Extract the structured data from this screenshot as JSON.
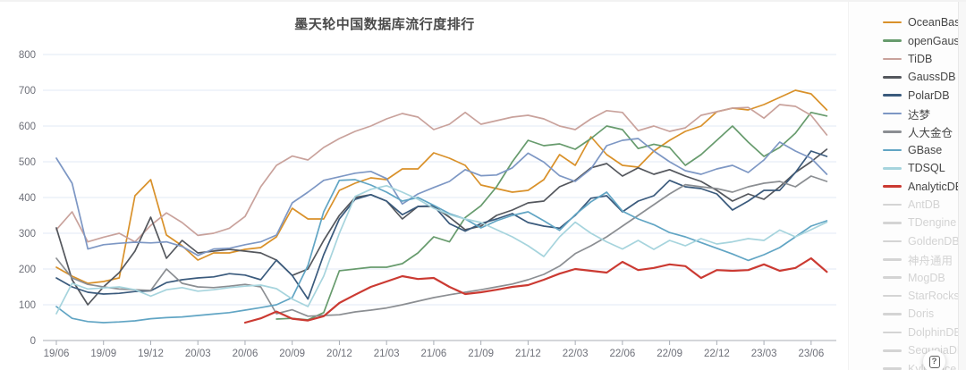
{
  "chart": {
    "title": "墨天轮中国数据库流行度排行"
  },
  "help_button": {
    "label": "?"
  },
  "chart_data": {
    "type": "line",
    "title": "墨天轮中国数据库流行度排行",
    "xlabel": "",
    "ylabel": "",
    "ylim": [
      0,
      800
    ],
    "y_ticks": [
      0,
      100,
      200,
      300,
      400,
      500,
      600,
      700,
      800
    ],
    "grid": true,
    "legend_position": "right",
    "x_tick_labels": [
      "19/06",
      "19/09",
      "19/12",
      "20/03",
      "20/06",
      "20/09",
      "20/12",
      "21/03",
      "21/06",
      "21/09",
      "21/12",
      "22/03",
      "22/06",
      "22/09",
      "22/12",
      "23/03",
      "23/06"
    ],
    "months": [
      "19/06",
      "19/07",
      "19/08",
      "19/09",
      "19/10",
      "19/11",
      "19/12",
      "20/01",
      "20/02",
      "20/03",
      "20/04",
      "20/05",
      "20/06",
      "20/07",
      "20/08",
      "20/09",
      "20/10",
      "20/11",
      "20/12",
      "21/01",
      "21/02",
      "21/03",
      "21/04",
      "21/05",
      "21/06",
      "21/07",
      "21/08",
      "21/09",
      "21/10",
      "21/11",
      "21/12",
      "22/01",
      "22/02",
      "22/03",
      "22/04",
      "22/05",
      "22/06",
      "22/07",
      "22/08",
      "22/09",
      "22/10",
      "22/11",
      "22/12",
      "23/01",
      "23/02",
      "23/03",
      "23/04",
      "23/05",
      "23/06",
      "23/07"
    ],
    "series": [
      {
        "name": "OceanBase",
        "color": "#d9912a",
        "enabled": true,
        "width": 1.7,
        "values": [
          205,
          180,
          160,
          165,
          175,
          405,
          450,
          295,
          265,
          225,
          245,
          245,
          255,
          260,
          290,
          370,
          340,
          340,
          420,
          440,
          455,
          450,
          480,
          480,
          525,
          510,
          490,
          435,
          425,
          415,
          420,
          450,
          520,
          490,
          570,
          520,
          490,
          485,
          530,
          560,
          585,
          600,
          640,
          650,
          645,
          660,
          680,
          700,
          690,
          645
        ]
      },
      {
        "name": "openGauss",
        "color": "#679b6d",
        "enabled": true,
        "width": 1.7,
        "values": [
          null,
          null,
          null,
          null,
          null,
          null,
          null,
          null,
          null,
          null,
          null,
          null,
          null,
          null,
          60,
          62,
          58,
          78,
          195,
          200,
          205,
          205,
          215,
          245,
          290,
          276,
          344,
          377,
          430,
          500,
          560,
          545,
          550,
          535,
          565,
          600,
          590,
          537,
          549,
          540,
          490,
          520,
          560,
          600,
          555,
          515,
          540,
          580,
          638,
          628
        ]
      },
      {
        "name": "TiDB",
        "color": "#c9a29c",
        "enabled": true,
        "width": 1.7,
        "values": [
          310,
          360,
          276,
          289,
          300,
          276,
          322,
          357,
          330,
          294,
          300,
          314,
          347,
          430,
          490,
          516,
          505,
          540,
          565,
          585,
          600,
          620,
          635,
          625,
          590,
          605,
          638,
          605,
          615,
          625,
          630,
          620,
          600,
          590,
          620,
          643,
          638,
          587,
          600,
          585,
          595,
          630,
          640,
          650,
          652,
          622,
          660,
          655,
          630,
          575
        ]
      },
      {
        "name": "GaussDB",
        "color": "#54575d",
        "enabled": true,
        "width": 1.7,
        "values": [
          315,
          170,
          100,
          150,
          190,
          250,
          345,
          230,
          280,
          245,
          250,
          255,
          250,
          245,
          225,
          182,
          200,
          280,
          350,
          400,
          408,
          390,
          340,
          375,
          375,
          345,
          310,
          320,
          350,
          365,
          385,
          390,
          430,
          448,
          483,
          495,
          460,
          483,
          465,
          478,
          460,
          445,
          420,
          390,
          410,
          395,
          430,
          470,
          500,
          535
        ]
      },
      {
        "name": "PolarDB",
        "color": "#3a5a7c",
        "enabled": true,
        "width": 1.7,
        "values": [
          175,
          150,
          135,
          130,
          132,
          137,
          139,
          162,
          170,
          175,
          178,
          187,
          183,
          170,
          225,
          182,
          116,
          240,
          340,
          395,
          408,
          390,
          352,
          375,
          377,
          327,
          306,
          327,
          340,
          355,
          330,
          320,
          314,
          350,
          398,
          405,
          360,
          390,
          405,
          448,
          430,
          425,
          410,
          365,
          390,
          420,
          420,
          470,
          530,
          515
        ]
      },
      {
        "name": "达梦",
        "color": "#7d97c4",
        "enabled": true,
        "width": 1.7,
        "values": [
          510,
          440,
          256,
          268,
          272,
          275,
          273,
          276,
          263,
          238,
          256,
          258,
          268,
          276,
          295,
          385,
          415,
          448,
          458,
          468,
          473,
          453,
          382,
          410,
          428,
          445,
          478,
          461,
          463,
          483,
          524,
          499,
          461,
          445,
          480,
          545,
          560,
          565,
          530,
          500,
          475,
          465,
          480,
          490,
          470,
          505,
          555,
          530,
          510,
          465
        ]
      },
      {
        "name": "人大金仓",
        "color": "#8b8e92",
        "enabled": true,
        "width": 1.7,
        "values": [
          230,
          175,
          157,
          150,
          144,
          142,
          140,
          200,
          160,
          150,
          148,
          152,
          157,
          150,
          75,
          86,
          68,
          70,
          72,
          80,
          85,
          91,
          100,
          110,
          120,
          128,
          135,
          142,
          150,
          158,
          170,
          185,
          208,
          243,
          265,
          290,
          320,
          350,
          380,
          410,
          436,
          430,
          425,
          415,
          430,
          440,
          445,
          430,
          460,
          445
        ]
      },
      {
        "name": "GBase",
        "color": "#61a5c4",
        "enabled": true,
        "width": 1.7,
        "values": [
          95,
          62,
          53,
          50,
          52,
          55,
          61,
          64,
          66,
          70,
          74,
          78,
          85,
          92,
          100,
          120,
          210,
          360,
          448,
          450,
          435,
          415,
          390,
          400,
          378,
          355,
          340,
          315,
          335,
          350,
          360,
          335,
          308,
          352,
          388,
          415,
          362,
          340,
          324,
          302,
          290,
          274,
          258,
          242,
          224,
          240,
          260,
          290,
          320,
          335
        ]
      },
      {
        "name": "TDSQL",
        "color": "#a6d4dd",
        "enabled": true,
        "width": 1.7,
        "values": [
          75,
          160,
          144,
          147,
          150,
          142,
          124,
          142,
          148,
          138,
          142,
          148,
          152,
          155,
          145,
          116,
          95,
          180,
          300,
          403,
          423,
          433,
          415,
          395,
          370,
          352,
          340,
          330,
          310,
          290,
          265,
          235,
          290,
          331,
          300,
          276,
          256,
          280,
          255,
          280,
          265,
          285,
          270,
          276,
          285,
          280,
          309,
          290,
          310,
          331
        ]
      },
      {
        "name": "AnalyticDB",
        "color": "#cb3a32",
        "enabled": true,
        "width": 2.2,
        "values": [
          null,
          null,
          null,
          null,
          null,
          null,
          null,
          null,
          null,
          null,
          null,
          null,
          50,
          62,
          81,
          61,
          56,
          68,
          105,
          128,
          150,
          165,
          180,
          172,
          175,
          150,
          130,
          135,
          142,
          150,
          155,
          170,
          187,
          200,
          195,
          190,
          220,
          197,
          203,
          213,
          208,
          175,
          197,
          195,
          197,
          213,
          195,
          203,
          230,
          192
        ]
      },
      {
        "name": "AntDB",
        "color": "#d4d4d4",
        "enabled": false,
        "values": null
      },
      {
        "name": "TDengine",
        "color": "#d4d4d4",
        "enabled": false,
        "values": null
      },
      {
        "name": "GoldenDB",
        "color": "#d4d4d4",
        "enabled": false,
        "values": null
      },
      {
        "name": "神舟通用",
        "color": "#d4d4d4",
        "enabled": false,
        "values": null
      },
      {
        "name": "MogDB",
        "color": "#d4d4d4",
        "enabled": false,
        "values": null
      },
      {
        "name": "StarRocks",
        "color": "#d4d4d4",
        "enabled": false,
        "values": null
      },
      {
        "name": "Doris",
        "color": "#d4d4d4",
        "enabled": false,
        "values": null
      },
      {
        "name": "DolphinDB",
        "color": "#d4d4d4",
        "enabled": false,
        "values": null
      },
      {
        "name": "SequoiaDB",
        "color": "#d4d4d4",
        "enabled": false,
        "values": null
      },
      {
        "name": "Kyligence",
        "color": "#d4d4d4",
        "enabled": false,
        "values": null
      }
    ]
  }
}
